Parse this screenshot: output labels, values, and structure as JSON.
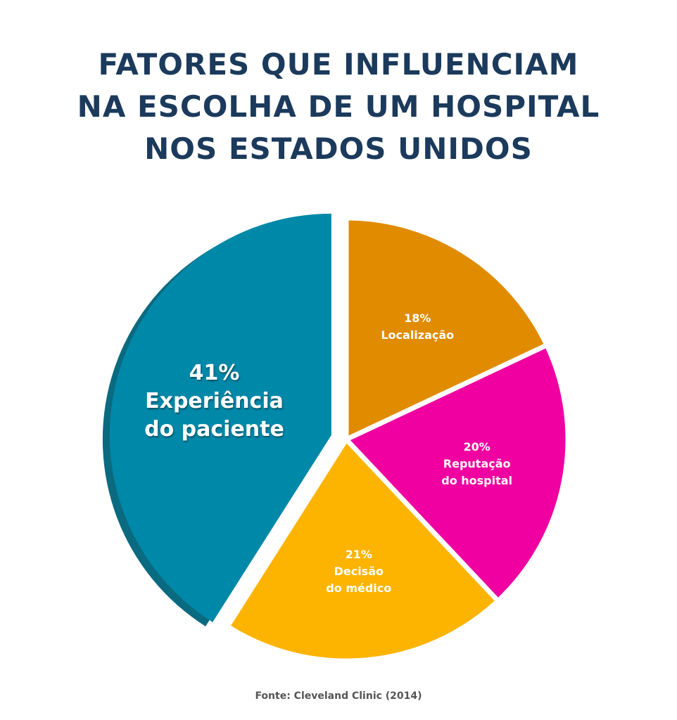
{
  "chart_data": {
    "type": "pie",
    "title": "FATORES QUE INFLUENCIAM\nNA ESCOLHA DE UM HOSPITAL\nNOS ESTADOS UNIDOS",
    "categories": [
      "Localização",
      "Reputação\ndo hospital",
      "Decisão\ndo médico",
      "Experiência\ndo paciente"
    ],
    "values": [
      18,
      20,
      21,
      41
    ],
    "value_labels": [
      "18%",
      "20%",
      "21%",
      "41%"
    ],
    "colors": [
      "#e08b00",
      "#f000a0",
      "#fdb400",
      "#0088a8"
    ],
    "source": "Fonte: Cleveland Clinic (2014)"
  }
}
